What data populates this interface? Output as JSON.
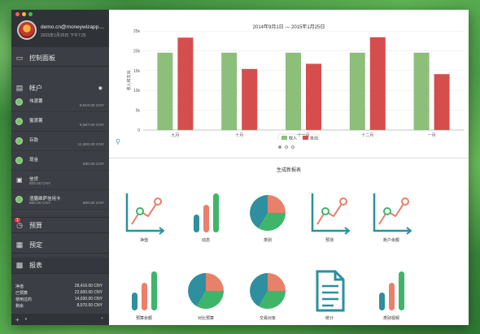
{
  "window": {
    "lights": [
      "#fc5f57",
      "#fdbc2e",
      "#33c748"
    ]
  },
  "profile": {
    "email": "demo.cn@moneywizapp....",
    "time": "2015年1月25日 下午7:25"
  },
  "nav": {
    "dashboard": "控制面板",
    "accounts": "帐户",
    "budget": "预算",
    "scheduled": "预定",
    "reports": "报表",
    "budget_badge": "1"
  },
  "accounts": [
    {
      "name": "伟渡薯",
      "sub": "",
      "balance": "9,919.00 CNY"
    },
    {
      "name": "霊渡薯",
      "sub": "",
      "balance": "5,567.00 CNY"
    },
    {
      "name": "存款",
      "sub": "",
      "balance": "11,500.00 CNY"
    },
    {
      "name": "现金",
      "sub": "",
      "balance": "630.00 CNY"
    },
    {
      "name": "信贷",
      "sub": "800.00 CNY",
      "balance": ""
    },
    {
      "name": "渣膳维萨信用卡",
      "sub": "800.00 CNY",
      "balance": "800.00 CNY"
    }
  ],
  "summary": [
    {
      "label": "净值",
      "value": "28,416.00 CNY"
    },
    {
      "label": "已预算",
      "value": "22,600.00 CNY"
    },
    {
      "label": "使用过的",
      "value": "14,030.00 CNY"
    },
    {
      "label": "剩余",
      "value": "8,570.00 CNY"
    }
  ],
  "chart_data": {
    "type": "bar",
    "title": "2014年9月1日 — 2015年1月25日",
    "ylabel": "收入和支出",
    "xlabel": "",
    "categories": [
      "九月",
      "十月",
      "十一月",
      "十二月",
      "一月"
    ],
    "series": [
      {
        "name": "收入",
        "color": "#8cbf7a",
        "values": [
          19500,
          19500,
          19500,
          19500,
          19500
        ]
      },
      {
        "name": "支出",
        "color": "#d64d4d",
        "values": [
          23300,
          15400,
          16700,
          23400,
          14100
        ]
      }
    ],
    "ylim": [
      0,
      25000
    ],
    "yticks": [
      "0",
      "5k",
      "10k",
      "15k",
      "20k",
      "25k"
    ],
    "legend": "bottom"
  },
  "gallery": {
    "title": "生成新报表",
    "tiles": [
      {
        "label": "净值",
        "icon": "line-chart-icon"
      },
      {
        "label": "动态",
        "icon": "bar-chart-icon"
      },
      {
        "label": "类别",
        "icon": "pie-chart-icon"
      },
      {
        "label": "预测",
        "icon": "line-chart-icon"
      },
      {
        "label": "账户余额",
        "icon": "line-chart-icon"
      },
      {
        "label": "预算余额",
        "icon": "bar-chart-icon"
      },
      {
        "label": "对比预算",
        "icon": "pie-chart-icon"
      },
      {
        "label": "交易对象",
        "icon": "pie-chart-icon"
      },
      {
        "label": "统计",
        "icon": "document-icon"
      },
      {
        "label": "类别视频",
        "icon": "bar-chart-icon"
      }
    ]
  }
}
